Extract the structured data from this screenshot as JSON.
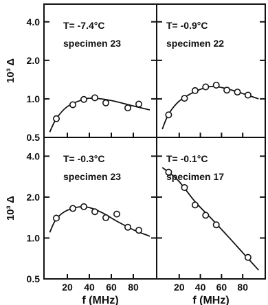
{
  "colors": {
    "ink": "#111111",
    "background": "#ffffff"
  },
  "chart_data": [
    {
      "type": "scatter",
      "annotations": [
        "T= -7.4°C",
        "specimen 23"
      ],
      "ylabel": "10³ Δ",
      "xlabel": "",
      "x_scale": "log",
      "y_scale": "log",
      "ylim": [
        0.5,
        4.0
      ],
      "yticks": [
        "4.0",
        "2.0",
        "1.0",
        "0.5"
      ],
      "xticks": [],
      "points": [
        [
          10,
          0.7
        ],
        [
          25,
          0.9
        ],
        [
          35,
          0.99
        ],
        [
          45,
          1.02
        ],
        [
          55,
          0.93
        ],
        [
          75,
          0.85
        ],
        [
          85,
          0.91
        ]
      ],
      "fit_curve": [
        [
          4,
          0.55
        ],
        [
          10,
          0.7
        ],
        [
          20,
          0.87
        ],
        [
          35,
          0.99
        ],
        [
          45,
          1.01
        ],
        [
          60,
          0.97
        ],
        [
          80,
          0.88
        ],
        [
          95,
          0.82
        ]
      ]
    },
    {
      "type": "scatter",
      "annotations": [
        "T= -0.9°C",
        "specimen 22"
      ],
      "ylabel": "",
      "xlabel": "",
      "x_scale": "log",
      "y_scale": "log",
      "ylim": [
        0.5,
        4.0
      ],
      "yticks": [],
      "xticks": [],
      "points": [
        [
          10,
          0.75
        ],
        [
          25,
          1.01
        ],
        [
          35,
          1.16
        ],
        [
          45,
          1.24
        ],
        [
          55,
          1.28
        ],
        [
          65,
          1.17
        ],
        [
          75,
          1.13
        ],
        [
          85,
          1.07
        ]
      ],
      "fit_curve": [
        [
          4,
          0.58
        ],
        [
          10,
          0.76
        ],
        [
          20,
          0.96
        ],
        [
          35,
          1.14
        ],
        [
          50,
          1.25
        ],
        [
          65,
          1.2
        ],
        [
          80,
          1.1
        ],
        [
          95,
          1.0
        ]
      ]
    },
    {
      "type": "scatter",
      "annotations": [
        "T= -0.3°C",
        "specimen 23"
      ],
      "ylabel": "10³ Δ",
      "xlabel": "f (MHz)",
      "x_scale": "log",
      "y_scale": "log",
      "ylim": [
        0.5,
        4.0
      ],
      "yticks": [
        "4.0",
        "2.0",
        "1.0",
        "0.5"
      ],
      "xticks": [
        "20",
        "40",
        "60",
        "80"
      ],
      "points": [
        [
          10,
          1.4
        ],
        [
          25,
          1.65
        ],
        [
          35,
          1.7
        ],
        [
          45,
          1.56
        ],
        [
          55,
          1.41
        ],
        [
          65,
          1.5
        ],
        [
          75,
          1.2
        ],
        [
          85,
          1.14
        ]
      ],
      "fit_curve": [
        [
          4,
          1.1
        ],
        [
          10,
          1.38
        ],
        [
          20,
          1.6
        ],
        [
          35,
          1.7
        ],
        [
          50,
          1.56
        ],
        [
          65,
          1.33
        ],
        [
          80,
          1.15
        ],
        [
          95,
          1.03
        ]
      ]
    },
    {
      "type": "scatter",
      "annotations": [
        "T= -0.1°C",
        "specimen 17"
      ],
      "ylabel": "",
      "xlabel": "f (MHz)",
      "x_scale": "log",
      "y_scale": "log",
      "ylim": [
        0.5,
        4.0
      ],
      "yticks": [],
      "xticks": [
        "20",
        "40",
        "60",
        "80"
      ],
      "points": [
        [
          10,
          3.05
        ],
        [
          25,
          2.35
        ],
        [
          35,
          1.75
        ],
        [
          45,
          1.47
        ],
        [
          55,
          1.25
        ],
        [
          85,
          0.72
        ]
      ],
      "fit_curve": [
        [
          4,
          3.3
        ],
        [
          10,
          3.05
        ],
        [
          20,
          2.6
        ],
        [
          35,
          1.85
        ],
        [
          50,
          1.4
        ],
        [
          65,
          1.05
        ],
        [
          80,
          0.78
        ],
        [
          95,
          0.58
        ]
      ]
    }
  ]
}
